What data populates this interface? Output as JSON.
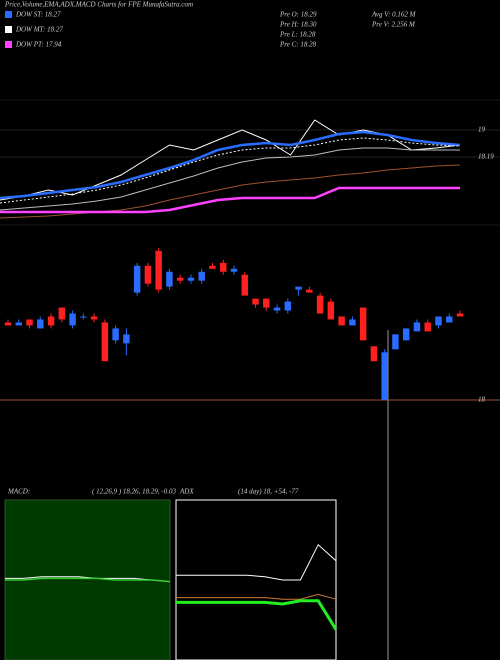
{
  "header": {
    "title": "Price,Volume,EMA,ADX,MACD Charts for FPE MunafaSutra.com",
    "legend": [
      {
        "label": "DOW ST: 18.27",
        "color": "#2a6cff"
      },
      {
        "label": "DOW MT: 18.27",
        "color": "#ffffff"
      },
      {
        "label": "DOW PT: 17.94",
        "color": "#ff40ff"
      }
    ],
    "quote": [
      "Pre  O: 18.29",
      "Pre  H: 18.30",
      "Pre  L: 18.28",
      "Pre  C: 18.28"
    ],
    "volume": [
      "Avg V: 0.162  M",
      "Pre  V: 2.256  M"
    ]
  },
  "chart_data": [
    {
      "type": "line",
      "ylim": [
        16.15,
        20.95
      ],
      "yticks": [
        19,
        18.19
      ],
      "series": [
        {
          "color": "#ffffff",
          "width": 1,
          "values": [
            16.9,
            17.02,
            17.2,
            17.05,
            17.35,
            17.65,
            18.1,
            18.55,
            18.4,
            18.7,
            19.0,
            18.7,
            18.25,
            19.3,
            18.85,
            19.0,
            18.85,
            18.4,
            18.46,
            18.55
          ]
        },
        {
          "color": "#2a6cff",
          "width": 2.5,
          "values": [
            16.96,
            17.02,
            17.11,
            17.2,
            17.29,
            17.44,
            17.65,
            17.86,
            18.1,
            18.4,
            18.55,
            18.61,
            18.55,
            18.7,
            18.88,
            18.94,
            18.85,
            18.7,
            18.61,
            18.55
          ]
        },
        {
          "color": "#ffffff",
          "width": 1,
          "style": "dotted",
          "values": [
            16.81,
            16.9,
            16.99,
            17.08,
            17.2,
            17.35,
            17.56,
            17.8,
            18.04,
            18.25,
            18.4,
            18.46,
            18.46,
            18.55,
            18.7,
            18.76,
            18.7,
            18.61,
            18.55,
            18.52
          ]
        },
        {
          "color": "#bbbbbb",
          "width": 1,
          "values": [
            16.6,
            16.66,
            16.72,
            16.78,
            16.87,
            16.99,
            17.2,
            17.41,
            17.62,
            17.86,
            18.04,
            18.16,
            18.19,
            18.25,
            18.4,
            18.46,
            18.46,
            18.4,
            18.4,
            18.4
          ]
        },
        {
          "color": "#a0522d",
          "width": 1,
          "values": [
            16.36,
            16.39,
            16.42,
            16.48,
            16.54,
            16.6,
            16.72,
            16.9,
            17.05,
            17.2,
            17.35,
            17.44,
            17.5,
            17.56,
            17.65,
            17.71,
            17.8,
            17.86,
            17.92,
            17.95
          ]
        },
        {
          "color": "#ff40ff",
          "width": 2.5,
          "values": [
            16.54,
            16.54,
            16.54,
            16.54,
            16.54,
            16.54,
            16.54,
            16.6,
            16.75,
            16.9,
            16.96,
            16.96,
            16.96,
            16.96,
            17.26,
            17.26,
            17.26,
            17.26,
            17.26,
            17.26
          ]
        }
      ]
    },
    {
      "type": "candlestick",
      "ylim": [
        18,
        18.57
      ],
      "yticks": [
        18
      ],
      "up_color": "#2a6cff",
      "down_color": "#ff2020",
      "open": [
        18.26,
        18.25,
        18.27,
        18.24,
        18.28,
        18.31,
        18.25,
        18.28,
        18.28,
        18.26,
        18.2,
        18.19,
        18.36,
        18.45,
        18.5,
        18.38,
        18.41,
        18.4,
        18.4,
        18.45,
        18.46,
        18.43,
        18.42,
        18.34,
        18.34,
        18.3,
        18.3,
        18.37,
        18.37,
        18.35,
        18.33,
        18.28,
        18.25,
        18.31,
        18.18,
        18.0,
        18.17,
        18.2,
        18.23,
        18.26,
        18.25,
        18.26,
        18.29
      ],
      "high": [
        18.27,
        18.27,
        18.27,
        18.28,
        18.29,
        18.31,
        18.3,
        18.29,
        18.29,
        18.27,
        18.25,
        18.24,
        18.46,
        18.46,
        18.51,
        18.44,
        18.42,
        18.42,
        18.44,
        18.46,
        18.47,
        18.45,
        18.43,
        18.34,
        18.34,
        18.32,
        18.34,
        18.38,
        18.38,
        18.36,
        18.34,
        18.28,
        18.28,
        18.31,
        18.18,
        18.17,
        18.22,
        18.24,
        18.27,
        18.27,
        18.28,
        18.29,
        18.3
      ],
      "low": [
        18.25,
        18.25,
        18.24,
        18.24,
        18.24,
        18.26,
        18.24,
        18.27,
        18.26,
        18.13,
        18.19,
        18.15,
        18.35,
        18.38,
        18.36,
        18.37,
        18.39,
        18.39,
        18.39,
        18.44,
        18.42,
        18.42,
        18.35,
        18.31,
        18.3,
        18.29,
        18.29,
        18.35,
        18.36,
        18.29,
        18.27,
        18.25,
        18.25,
        18.2,
        18.13,
        18.0,
        18.17,
        18.2,
        18.23,
        18.23,
        18.24,
        18.26,
        18.28
      ],
      "close": [
        18.25,
        18.26,
        18.25,
        18.27,
        18.25,
        18.27,
        18.29,
        18.28,
        18.27,
        18.13,
        18.24,
        18.22,
        18.45,
        18.39,
        18.37,
        18.43,
        18.4,
        18.41,
        18.43,
        18.44,
        18.43,
        18.44,
        18.35,
        18.32,
        18.31,
        18.31,
        18.33,
        18.38,
        18.36,
        18.29,
        18.27,
        18.25,
        18.27,
        18.2,
        18.13,
        18.16,
        18.22,
        18.24,
        18.26,
        18.23,
        18.28,
        18.28,
        18.28
      ]
    },
    {
      "type": "line",
      "label": "MACD:",
      "params": "( 12,26,9 ) 18.26, 18.29, -0.03",
      "background": "#003a00",
      "ylim": [
        0,
        100
      ],
      "series": [
        {
          "color": "#ffffff",
          "width": 1,
          "values": [
            51,
            51,
            52,
            52,
            52,
            51,
            51,
            51,
            50,
            49
          ]
        },
        {
          "color": "#33cc33",
          "width": 1.5,
          "values": [
            50,
            50,
            51,
            51,
            51,
            51,
            50,
            50,
            50,
            49
          ]
        }
      ]
    },
    {
      "type": "line",
      "label": "ADX",
      "params": "(14  day) 18, +54, -77",
      "background": "#000000",
      "ylim": [
        0,
        100
      ],
      "series": [
        {
          "color": "#ffffff",
          "width": 1,
          "values": [
            53,
            53,
            53,
            53,
            53,
            52,
            50,
            50,
            72,
            62
          ]
        },
        {
          "color": "#cc7a33",
          "width": 1,
          "values": [
            39,
            39,
            39,
            39,
            39,
            39,
            38,
            38,
            41,
            38
          ]
        },
        {
          "color": "#22ee22",
          "width": 3,
          "values": [
            36,
            36,
            36,
            36,
            36,
            36,
            35,
            37,
            37,
            19
          ]
        }
      ]
    }
  ]
}
